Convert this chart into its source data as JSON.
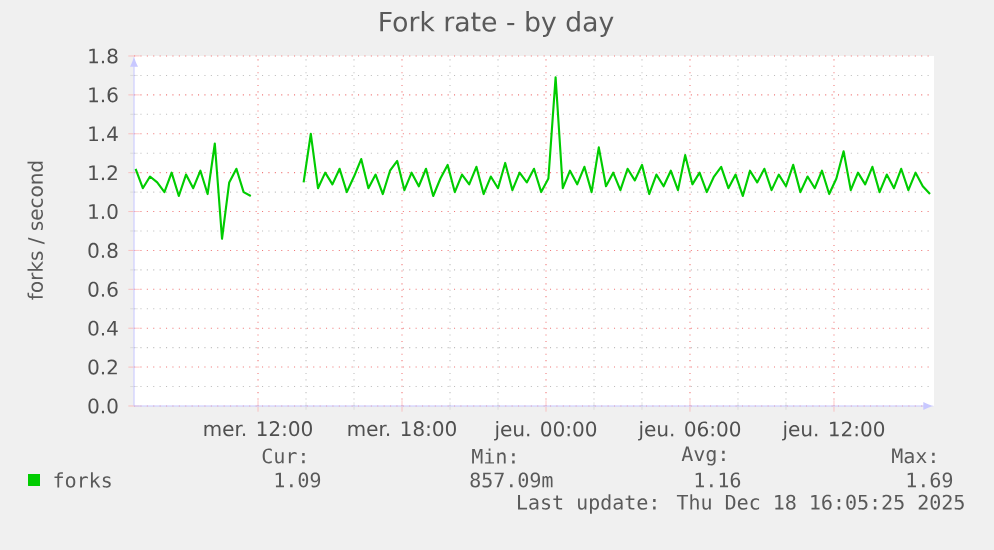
{
  "chart_data": {
    "type": "line",
    "title": "Fork rate - by day",
    "ylabel": "forks / second",
    "xlim": [
      "2025-12-17T06:50",
      "2025-12-18T16:10"
    ],
    "xticks": [
      {
        "value": "2025-12-17T12:00",
        "label": "mer. 12:00"
      },
      {
        "value": "2025-12-17T18:00",
        "label": "mer. 18:00"
      },
      {
        "value": "2025-12-18T00:00",
        "label": "jeu. 00:00"
      },
      {
        "value": "2025-12-18T06:00",
        "label": "jeu. 06:00"
      },
      {
        "value": "2025-12-18T12:00",
        "label": "jeu. 12:00"
      }
    ],
    "ylim": [
      0,
      1.8
    ],
    "yticks": [
      {
        "value": 0,
        "label": "0.0"
      },
      {
        "value": 0.2,
        "label": "0.2"
      },
      {
        "value": 0.4,
        "label": "0.4"
      },
      {
        "value": 0.6,
        "label": "0.6"
      },
      {
        "value": 0.8,
        "label": "0.8"
      },
      {
        "value": 1.0,
        "label": "1.0"
      },
      {
        "value": 1.2,
        "label": "1.2"
      },
      {
        "value": 1.4,
        "label": "1.4"
      },
      {
        "value": 1.6,
        "label": "1.6"
      },
      {
        "value": 1.8,
        "label": "1.8"
      }
    ],
    "grid": true,
    "legend": "bottom",
    "x": [
      "2025-12-17T06:54",
      "2025-12-17T07:12",
      "2025-12-17T07:30",
      "2025-12-17T07:48",
      "2025-12-17T08:06",
      "2025-12-17T08:24",
      "2025-12-17T08:42",
      "2025-12-17T09:00",
      "2025-12-17T09:18",
      "2025-12-17T09:36",
      "2025-12-17T09:54",
      "2025-12-17T10:12",
      "2025-12-17T10:30",
      "2025-12-17T10:48",
      "2025-12-17T11:06",
      "2025-12-17T11:24",
      "2025-12-17T11:42",
      "2025-12-17T12:48",
      "2025-12-17T13:54",
      "2025-12-17T14:12",
      "2025-12-17T14:30",
      "2025-12-17T14:48",
      "2025-12-17T15:06",
      "2025-12-17T15:24",
      "2025-12-17T15:42",
      "2025-12-17T16:00",
      "2025-12-17T16:18",
      "2025-12-17T16:36",
      "2025-12-17T16:54",
      "2025-12-17T17:12",
      "2025-12-17T17:30",
      "2025-12-17T17:48",
      "2025-12-17T18:06",
      "2025-12-17T18:24",
      "2025-12-17T18:42",
      "2025-12-17T19:00",
      "2025-12-17T19:18",
      "2025-12-17T19:36",
      "2025-12-17T19:54",
      "2025-12-17T20:12",
      "2025-12-17T20:30",
      "2025-12-17T20:48",
      "2025-12-17T21:06",
      "2025-12-17T21:24",
      "2025-12-17T21:42",
      "2025-12-17T22:00",
      "2025-12-17T22:18",
      "2025-12-17T22:36",
      "2025-12-17T22:54",
      "2025-12-17T23:12",
      "2025-12-17T23:30",
      "2025-12-17T23:48",
      "2025-12-18T00:06",
      "2025-12-18T00:24",
      "2025-12-18T00:42",
      "2025-12-18T01:00",
      "2025-12-18T01:18",
      "2025-12-18T01:36",
      "2025-12-18T01:54",
      "2025-12-18T02:12",
      "2025-12-18T02:30",
      "2025-12-18T02:48",
      "2025-12-18T03:06",
      "2025-12-18T03:24",
      "2025-12-18T03:42",
      "2025-12-18T04:00",
      "2025-12-18T04:18",
      "2025-12-18T04:36",
      "2025-12-18T04:54",
      "2025-12-18T05:12",
      "2025-12-18T05:30",
      "2025-12-18T05:48",
      "2025-12-18T06:06",
      "2025-12-18T06:24",
      "2025-12-18T06:42",
      "2025-12-18T07:00",
      "2025-12-18T07:18",
      "2025-12-18T07:36",
      "2025-12-18T07:54",
      "2025-12-18T08:12",
      "2025-12-18T08:30",
      "2025-12-18T08:48",
      "2025-12-18T09:06",
      "2025-12-18T09:24",
      "2025-12-18T09:42",
      "2025-12-18T10:00",
      "2025-12-18T10:18",
      "2025-12-18T10:36",
      "2025-12-18T10:54",
      "2025-12-18T11:12",
      "2025-12-18T11:30",
      "2025-12-18T11:48",
      "2025-12-18T12:06",
      "2025-12-18T12:24",
      "2025-12-18T12:42",
      "2025-12-18T13:00",
      "2025-12-18T13:18",
      "2025-12-18T13:36",
      "2025-12-18T13:54",
      "2025-12-18T14:12",
      "2025-12-18T14:30",
      "2025-12-18T14:48",
      "2025-12-18T15:06",
      "2025-12-18T15:24",
      "2025-12-18T15:42",
      "2025-12-18T16:00"
    ],
    "series": [
      {
        "name": "forks",
        "color": "#00cc00",
        "values": [
          1.22,
          1.12,
          1.18,
          1.15,
          1.1,
          1.2,
          1.08,
          1.19,
          1.12,
          1.21,
          1.09,
          1.35,
          0.86,
          1.15,
          1.22,
          1.1,
          1.08,
          null,
          1.15,
          1.4,
          1.12,
          1.2,
          1.14,
          1.22,
          1.1,
          1.18,
          1.27,
          1.12,
          1.19,
          1.09,
          1.21,
          1.26,
          1.11,
          1.2,
          1.13,
          1.22,
          1.08,
          1.17,
          1.24,
          1.1,
          1.19,
          1.14,
          1.23,
          1.09,
          1.18,
          1.12,
          1.25,
          1.11,
          1.2,
          1.15,
          1.22,
          1.1,
          1.17,
          1.69,
          1.12,
          1.21,
          1.14,
          1.23,
          1.1,
          1.33,
          1.13,
          1.2,
          1.11,
          1.22,
          1.16,
          1.24,
          1.09,
          1.19,
          1.13,
          1.21,
          1.11,
          1.29,
          1.14,
          1.2,
          1.1,
          1.18,
          1.23,
          1.12,
          1.19,
          1.08,
          1.21,
          1.15,
          1.22,
          1.11,
          1.19,
          1.13,
          1.24,
          1.1,
          1.18,
          1.12,
          1.21,
          1.09,
          1.17,
          1.31,
          1.11,
          1.2,
          1.14,
          1.23,
          1.1,
          1.19,
          1.12,
          1.22,
          1.11,
          1.2,
          1.13,
          1.09
        ]
      }
    ],
    "annotations": [
      "Cur:",
      "1.09",
      "Min:",
      "857.09m",
      "Avg:",
      "1.16",
      "Max:",
      "1.69",
      "Last update: Thu Dec 18 16:05:25 2025"
    ]
  }
}
